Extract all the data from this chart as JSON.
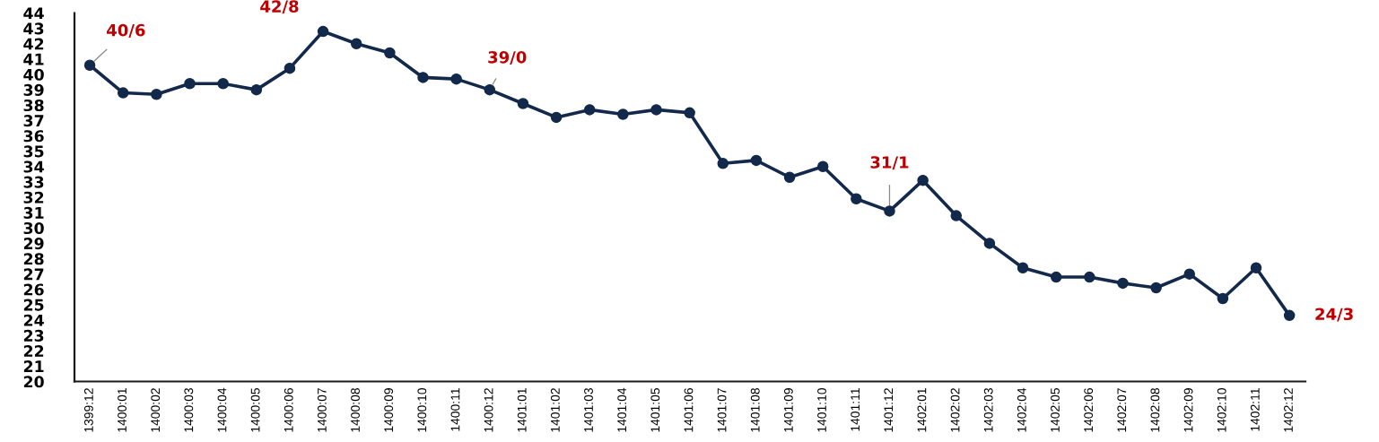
{
  "chart_data": {
    "type": "line",
    "categories": [
      "1399:12",
      "1400:01",
      "1400:02",
      "1400:03",
      "1400:04",
      "1400:05",
      "1400:06",
      "1400:07",
      "1400:08",
      "1400:09",
      "1400:10",
      "1400:11",
      "1400:12",
      "1401:01",
      "1401:02",
      "1401:03",
      "1401:04",
      "1401:05",
      "1401:06",
      "1401:07",
      "1401:08",
      "1401:09",
      "1401:10",
      "1401:11",
      "1401:12",
      "1402:01",
      "1402:02",
      "1402:03",
      "1402:04",
      "1402:05",
      "1402:06",
      "1402:07",
      "1402:08",
      "1402:09",
      "1402:10",
      "1402:11",
      "1402:12"
    ],
    "series": [
      {
        "color": "#13294b",
        "values": [
          40.6,
          38.8,
          38.7,
          39.4,
          39.4,
          39.0,
          40.4,
          42.8,
          42.0,
          41.4,
          39.8,
          39.7,
          39.0,
          38.1,
          37.2,
          37.7,
          37.4,
          37.7,
          37.5,
          34.2,
          34.4,
          33.3,
          34.0,
          31.9,
          31.1,
          33.1,
          30.8,
          29.0,
          27.4,
          26.8,
          26.8,
          26.4,
          26.1,
          27.0,
          25.4,
          27.4,
          24.3
        ],
        "value_labels": [
          "40/6",
          null,
          null,
          null,
          null,
          null,
          null,
          "42/8",
          null,
          null,
          null,
          null,
          "39/0",
          null,
          null,
          null,
          null,
          null,
          null,
          null,
          null,
          null,
          null,
          null,
          "31/1",
          null,
          null,
          null,
          null,
          null,
          null,
          null,
          null,
          null,
          null,
          null,
          "24/3"
        ]
      }
    ],
    "ylim": [
      20,
      44
    ],
    "yticks": [
      20,
      21,
      22,
      23,
      24,
      25,
      26,
      27,
      28,
      29,
      30,
      31,
      32,
      33,
      34,
      35,
      36,
      37,
      38,
      39,
      40,
      41,
      42,
      43,
      44
    ],
    "marker": "circle",
    "line_style": "solid",
    "grid": false
  }
}
